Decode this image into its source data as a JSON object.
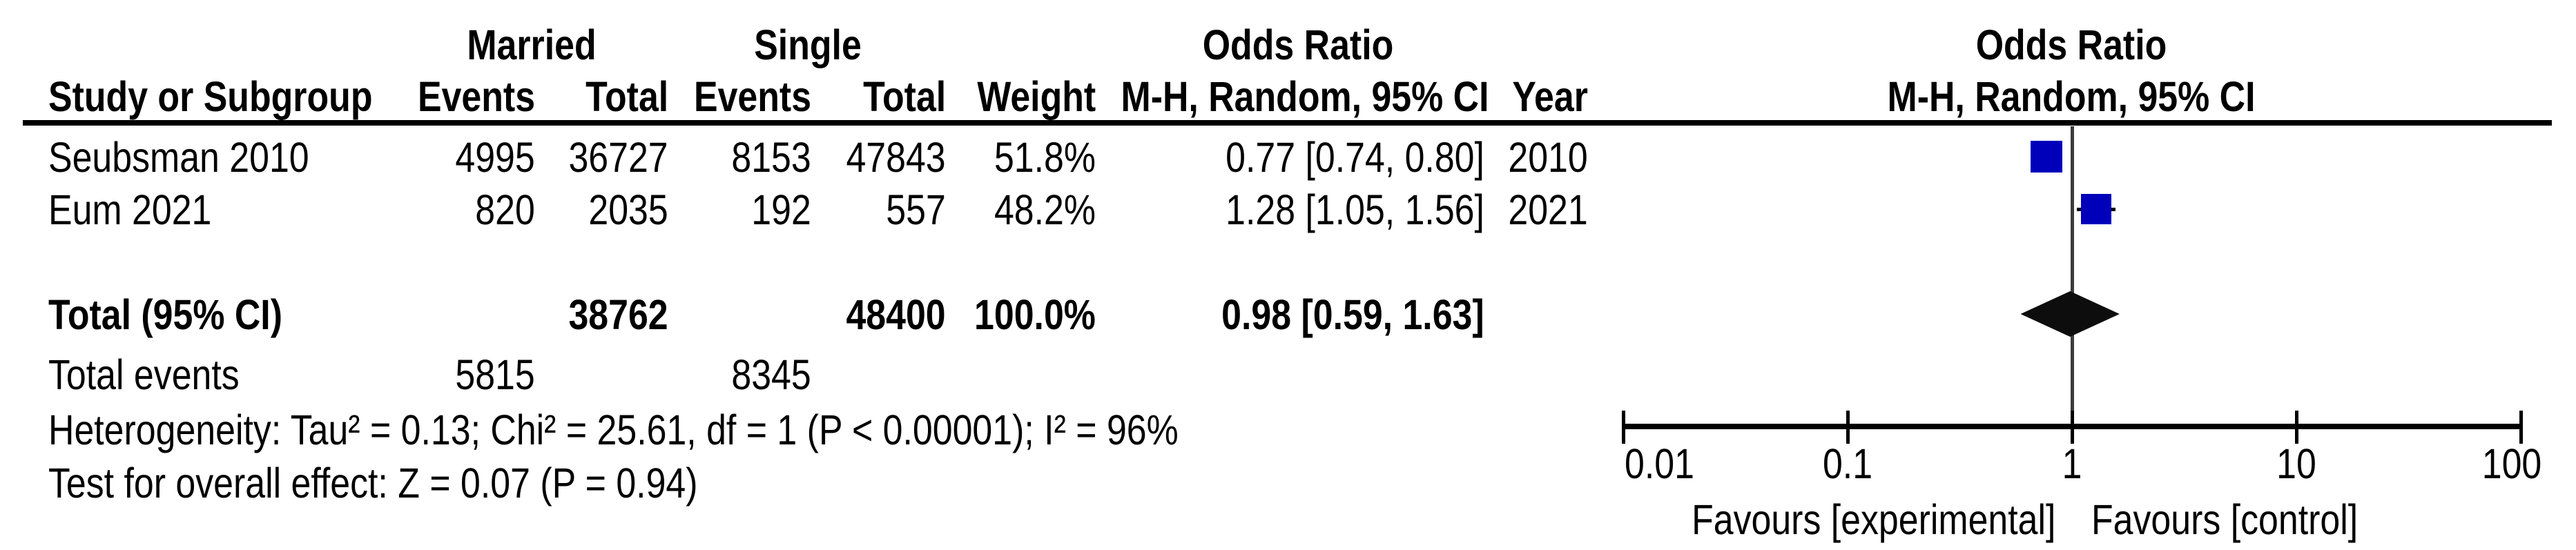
{
  "table": {
    "group1_label": "Married",
    "group2_label": "Single",
    "or_header": "Odds Ratio",
    "col_study": "Study or Subgroup",
    "col_events": "Events",
    "col_total": "Total",
    "col_weight": "Weight",
    "col_mh": "M-H, Random, 95% CI",
    "col_year": "Year"
  },
  "plot_header": {
    "title": "Odds Ratio",
    "subtitle": "M-H, Random, 95% CI"
  },
  "studies": [
    {
      "name": "Seubsman 2010",
      "events1": "4995",
      "total1": "36727",
      "events2": "8153",
      "total2": "47843",
      "weight": "51.8%",
      "or_ci": "0.77 [0.74, 0.80]",
      "year": "2010"
    },
    {
      "name": "Eum 2021",
      "events1": "820",
      "total1": "2035",
      "events2": "192",
      "total2": "557",
      "weight": "48.2%",
      "or_ci": "1.28 [1.05, 1.56]",
      "year": "2021"
    }
  ],
  "total_row": {
    "label": "Total (95% CI)",
    "total1": "38762",
    "total2": "48400",
    "weight": "100.0%",
    "or_ci": "0.98 [0.59, 1.63]"
  },
  "total_events_row": {
    "label": "Total events",
    "events1": "5815",
    "events2": "8345"
  },
  "heterogeneity": "Heterogeneity: Tau² = 0.13; Chi² = 25.61, df = 1 (P < 0.00001); I² = 96%",
  "overall_effect": "Test for overall effect: Z = 0.07 (P = 0.94)",
  "axis": {
    "tick_labels": [
      "0.01",
      "0.1",
      "1",
      "10",
      "100"
    ],
    "favours_left": "Favours [experimental]",
    "favours_right": "Favours [control]"
  },
  "colors": {
    "square": "#0000BB",
    "diamond": "#0D0D0D",
    "null_line": "#3C3C3C",
    "axis": "#000000",
    "ci_line": "#000000"
  },
  "chart_data": {
    "type": "scatter",
    "variant": "forest-plot",
    "effect_measure": "Odds Ratio, M-H, Random, 95% CI",
    "scale": "log10",
    "x_ticks": [
      0.01,
      0.1,
      1,
      10,
      100
    ],
    "xlim": [
      0.01,
      100
    ],
    "null_line": 1,
    "studies": [
      {
        "label": "Seubsman 2010",
        "or": 0.77,
        "ci": [
          0.74,
          0.8
        ],
        "weight_pct": 51.8,
        "year": 2010
      },
      {
        "label": "Eum 2021",
        "or": 1.28,
        "ci": [
          1.05,
          1.56
        ],
        "weight_pct": 48.2,
        "year": 2021
      }
    ],
    "total": {
      "label": "Total (95% CI)",
      "or": 0.98,
      "ci": [
        0.59,
        1.63
      ],
      "weight_pct": 100.0
    },
    "xlabel_left": "Favours [experimental]",
    "xlabel_right": "Favours [control]"
  }
}
